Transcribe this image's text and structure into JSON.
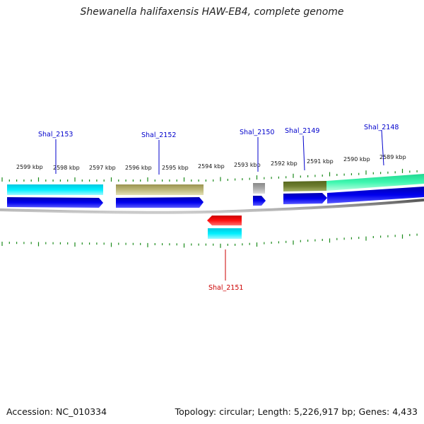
{
  "title": "Shewanella halifaxensis HAW-EB4, complete genome",
  "footer": {
    "accession": "Accession: NC_010334",
    "summary": "Topology: circular; Length: 5,226,917 bp; Genes: 4,433"
  },
  "colors": {
    "backbone": "#888888",
    "tick": "#1a8a1a",
    "label_forward": "#0000cc",
    "label_reverse": "#cc0000",
    "gene_blue": "#0000dd",
    "gene_red": "#ff0000",
    "cog_cyan": "#00e5ff",
    "cog_olive": "#b5b070",
    "cog_grey": "#aaaaaa",
    "cog_darkolive": "#6b7a2a",
    "cog_mint": "#33f5aa"
  },
  "scale_labels": [
    "2599 kbp",
    "2598 kbp",
    "2597 kbp",
    "2596 kbp",
    "2595 kbp",
    "2594 kbp",
    "2593 kbp",
    "2592 kbp",
    "2591 kbp",
    "2590 kbp",
    "2589 kbp"
  ],
  "genes": [
    {
      "name": "Shal_2153",
      "strand": "+",
      "cog": "cog_cyan"
    },
    {
      "name": "Shal_2152",
      "strand": "+",
      "cog": "cog_olive"
    },
    {
      "name": "Shal_2150",
      "strand": "+",
      "cog": "cog_grey"
    },
    {
      "name": "Shal_2149",
      "strand": "+",
      "cog": "cog_darkolive"
    },
    {
      "name": "Shal_2148",
      "strand": "+",
      "cog": "cog_mint"
    },
    {
      "name": "Shal_2151",
      "strand": "-",
      "cog": "cog_cyan"
    }
  ]
}
